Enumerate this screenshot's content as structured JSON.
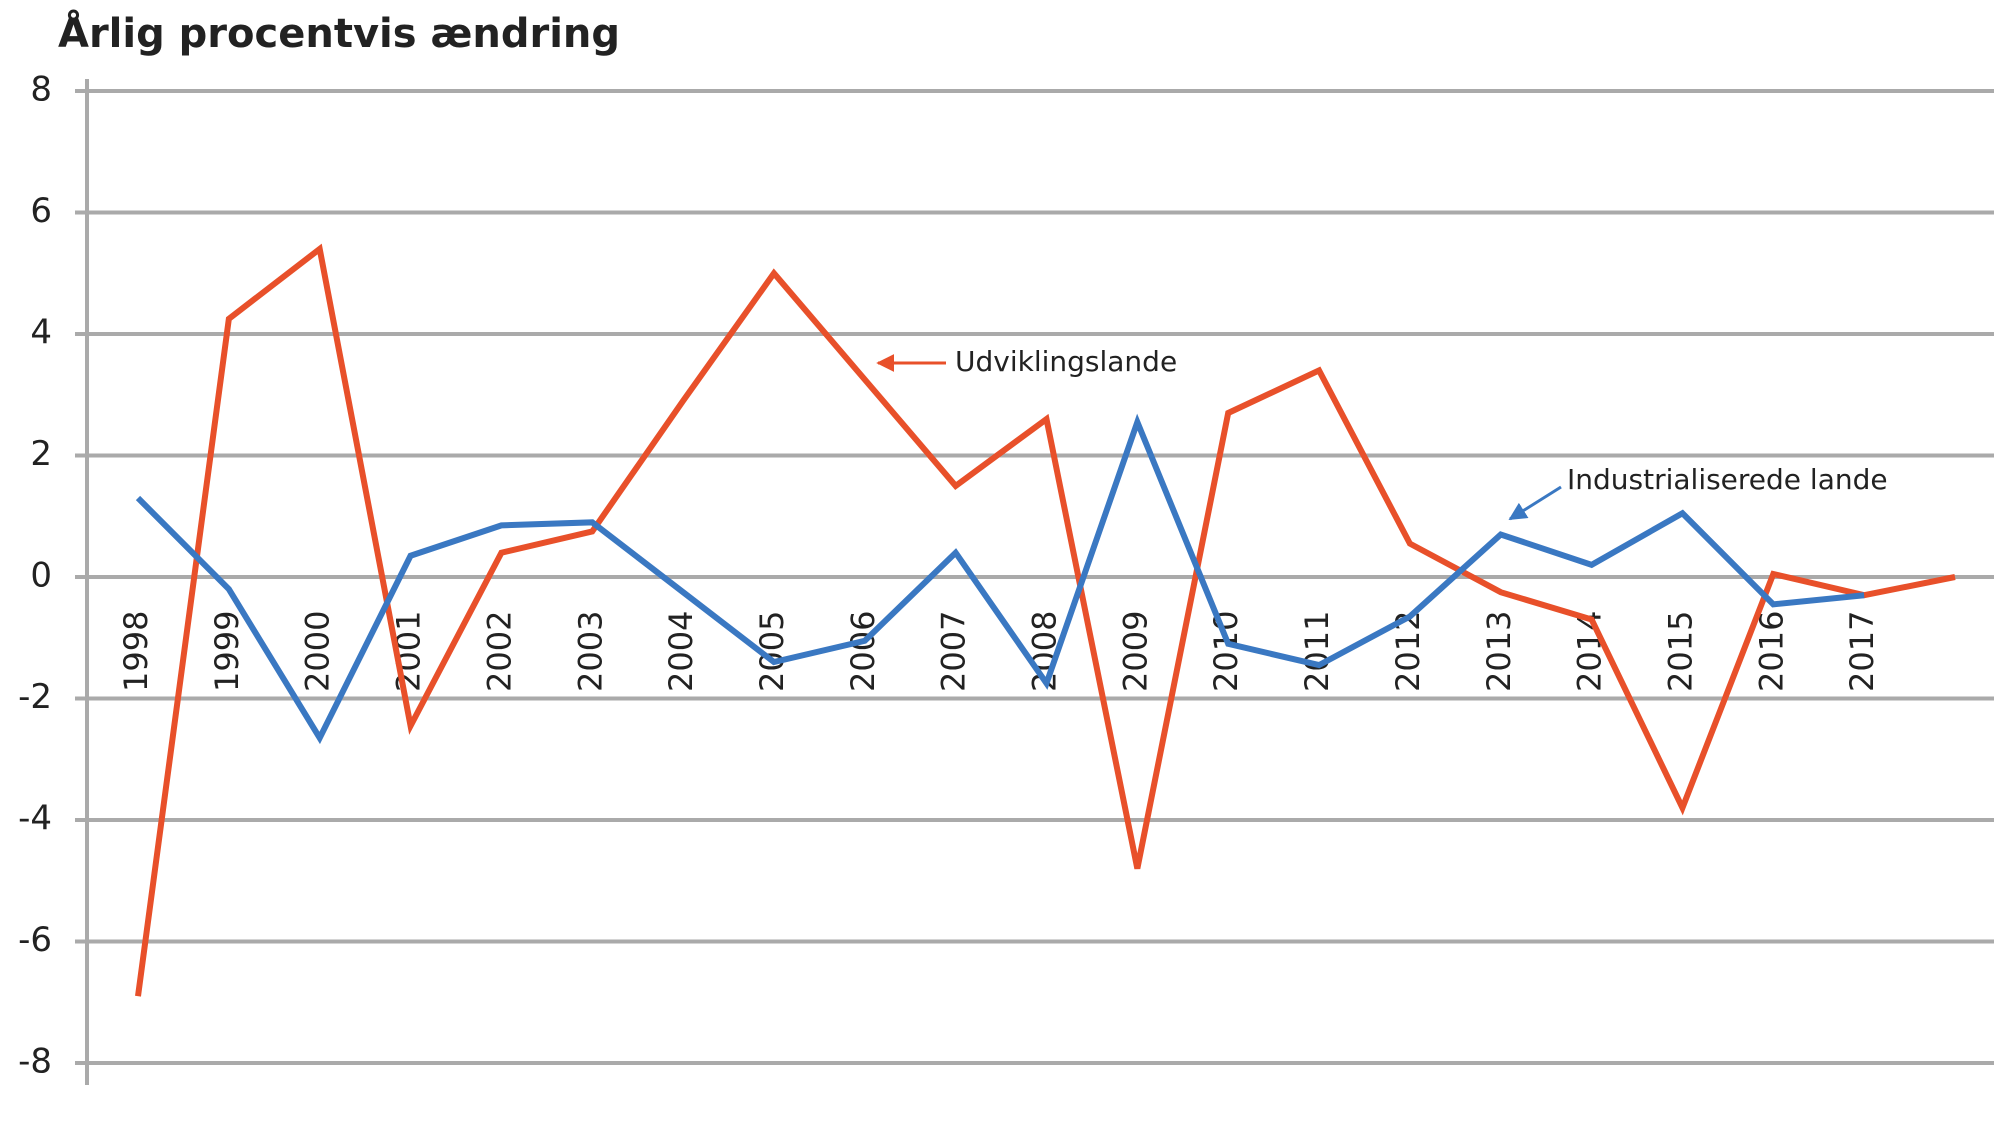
{
  "chart_data": {
    "type": "line",
    "title": "Årlig procentvis ændring",
    "categories": [
      "1998",
      "1999",
      "2000",
      "2001",
      "2002",
      "2003",
      "2004",
      "2005",
      "2006",
      "2007",
      "2008",
      "2009",
      "2010",
      "2011",
      "2012",
      "2013",
      "2014",
      "2015",
      "2016",
      "2017",
      null
    ],
    "series": [
      {
        "name": "Udviklingslande",
        "color": "#e8502a",
        "values": [
          -6.9,
          4.25,
          5.4,
          -2.45,
          0.4,
          0.75,
          2.9,
          5.0,
          3.25,
          1.5,
          2.6,
          -4.8,
          2.7,
          3.4,
          0.55,
          -0.25,
          -0.7,
          -3.8,
          0.05,
          -0.3,
          0
        ]
      },
      {
        "name": "Industrialiserede lande",
        "color": "#3a78c2",
        "values": [
          1.3,
          -0.2,
          -2.65,
          0.35,
          0.85,
          0.9,
          -0.25,
          -1.4,
          -1.05,
          0.4,
          -1.75,
          2.55,
          -1.1,
          -1.45,
          -0.65,
          0.7,
          0.2,
          1.05,
          -0.45,
          -0.3,
          null
        ]
      }
    ],
    "ylim": [
      -8,
      8
    ],
    "yticks": [
      -8,
      -6,
      -4,
      -2,
      0,
      2,
      4,
      6,
      8
    ],
    "grid": true
  }
}
